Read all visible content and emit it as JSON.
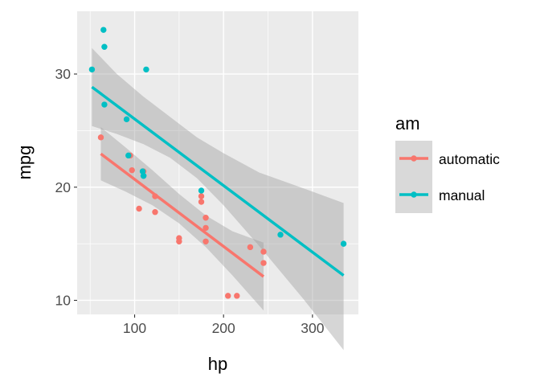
{
  "chart_data": {
    "type": "scatter",
    "title": "",
    "xlabel": "hp",
    "ylabel": "mpg",
    "xlim": [
      35.35,
      351.65
    ],
    "ylim": [
      8.755,
      35.545
    ],
    "xticks": [
      100,
      200,
      300
    ],
    "yticks": [
      10,
      20,
      30
    ],
    "xminor": [
      50,
      150,
      250
    ],
    "yminor": [
      15,
      25
    ],
    "grid": true,
    "legend": {
      "title": "am",
      "position": "right",
      "entries": [
        {
          "label": "automatic",
          "color": "#F8766D"
        },
        {
          "label": "manual",
          "color": "#00BFC4"
        }
      ]
    },
    "series": [
      {
        "name": "automatic",
        "color": "#F8766D",
        "points": [
          {
            "x": 110,
            "y": 21.4
          },
          {
            "x": 175,
            "y": 18.7
          },
          {
            "x": 105,
            "y": 18.1
          },
          {
            "x": 245,
            "y": 14.3
          },
          {
            "x": 62,
            "y": 24.4
          },
          {
            "x": 95,
            "y": 22.8
          },
          {
            "x": 123,
            "y": 19.2
          },
          {
            "x": 123,
            "y": 17.8
          },
          {
            "x": 180,
            "y": 16.4
          },
          {
            "x": 180,
            "y": 17.3
          },
          {
            "x": 180,
            "y": 15.2
          },
          {
            "x": 205,
            "y": 10.4
          },
          {
            "x": 215,
            "y": 10.4
          },
          {
            "x": 230,
            "y": 14.7
          },
          {
            "x": 97,
            "y": 21.5
          },
          {
            "x": 150,
            "y": 15.5
          },
          {
            "x": 150,
            "y": 15.2
          },
          {
            "x": 245,
            "y": 13.3
          },
          {
            "x": 175,
            "y": 19.2
          }
        ],
        "fit": {
          "x": [
            62,
            245
          ],
          "y": [
            22.95,
            12.1
          ]
        },
        "band": {
          "x": [
            62,
            90,
            120,
            150,
            180,
            210,
            245
          ],
          "lower": [
            20.6,
            19.6,
            18.4,
            16.8,
            14.7,
            12.2,
            9.1
          ],
          "upper": [
            25.3,
            23.5,
            21.5,
            19.4,
            17.5,
            16.1,
            15.1
          ]
        }
      },
      {
        "name": "manual",
        "color": "#00BFC4",
        "points": [
          {
            "x": 110,
            "y": 21.0
          },
          {
            "x": 110,
            "y": 21.0
          },
          {
            "x": 93,
            "y": 22.8
          },
          {
            "x": 66,
            "y": 32.4
          },
          {
            "x": 52,
            "y": 30.4
          },
          {
            "x": 65,
            "y": 33.9
          },
          {
            "x": 66,
            "y": 27.3
          },
          {
            "x": 91,
            "y": 26.0
          },
          {
            "x": 113,
            "y": 30.4
          },
          {
            "x": 264,
            "y": 15.8
          },
          {
            "x": 175,
            "y": 19.7
          },
          {
            "x": 335,
            "y": 15.0
          },
          {
            "x": 109,
            "y": 21.4
          }
        ],
        "fit": {
          "x": [
            52,
            335
          ],
          "y": [
            28.85,
            12.2
          ]
        },
        "band": {
          "x": [
            52,
            80,
            110,
            140,
            170,
            200,
            240,
            290,
            335
          ],
          "lower": [
            25.4,
            24.7,
            23.8,
            22.6,
            20.8,
            18.4,
            14.8,
            10.1,
            5.6
          ],
          "upper": [
            32.3,
            30.0,
            28.0,
            26.2,
            24.4,
            23.0,
            21.3,
            19.9,
            18.6
          ]
        }
      }
    ]
  }
}
